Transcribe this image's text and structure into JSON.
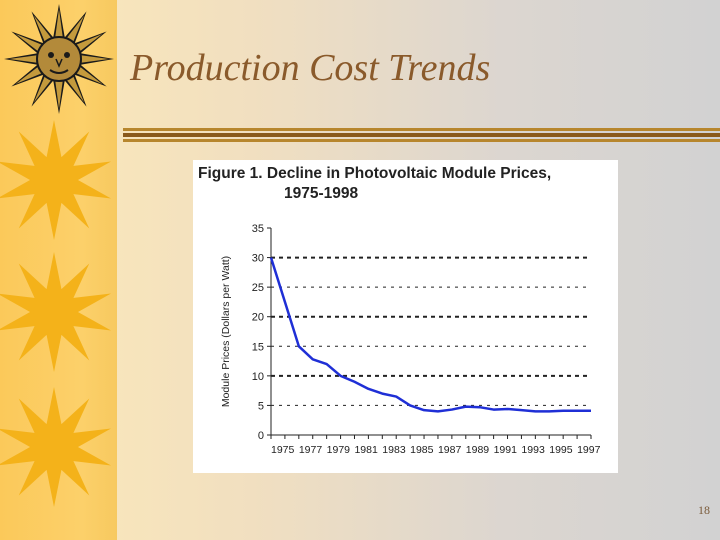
{
  "slide": {
    "title": "Production Cost Trends",
    "page_number": "18"
  },
  "chart_data": {
    "type": "line",
    "title": "Figure 1.  Decline in Photovoltaic Module Prices,",
    "subtitle": "1975-1998",
    "xlabel": "",
    "ylabel": "Module Prices (Dollars per Watt)",
    "x_tick_labels": [
      "1975",
      "1977",
      "1979",
      "1981",
      "1983",
      "1985",
      "1987",
      "1989",
      "1991",
      "1993",
      "1995",
      "1997"
    ],
    "xlim": [
      1975,
      1998
    ],
    "ylim": [
      0,
      35
    ],
    "y_ticks": [
      0,
      5,
      10,
      15,
      20,
      25,
      30,
      35
    ],
    "grid": "horizontal dashed",
    "series_color": "#1f2fd6",
    "series": [
      {
        "x": [
          1975,
          1976,
          1977,
          1978,
          1979,
          1980,
          1981,
          1982,
          1983,
          1984,
          1985,
          1986,
          1987,
          1988,
          1989,
          1990,
          1991,
          1992,
          1993,
          1994,
          1995,
          1996,
          1997,
          1998
        ],
        "values": [
          30,
          22.5,
          15,
          12.8,
          12,
          10,
          9,
          7.8,
          7,
          6.5,
          5,
          4.2,
          4,
          4.3,
          4.8,
          4.7,
          4.3,
          4.4,
          4.2,
          4.0,
          4.0,
          4.1,
          4.1,
          4.1
        ]
      }
    ]
  }
}
